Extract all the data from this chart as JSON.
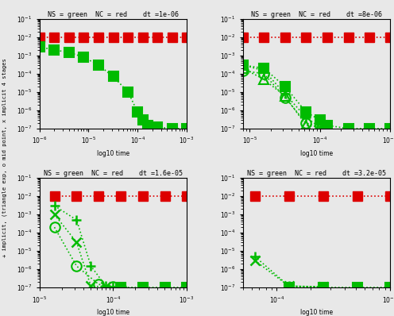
{
  "subplots": [
    {
      "title": "NS = green  NC = red    dt =1e-06",
      "xlim": [
        1e-06,
        0.001
      ],
      "ylim": [
        1e-07,
        0.1
      ],
      "red_x": [
        1e-06,
        2e-06,
        4e-06,
        8e-06,
        1.6e-05,
        3.2e-05,
        6.4e-05,
        0.000128,
        0.000256,
        0.000512,
        0.001
      ],
      "red_y": [
        0.01,
        0.01,
        0.01,
        0.01,
        0.01,
        0.01,
        0.01,
        0.01,
        0.01,
        0.01,
        0.01
      ],
      "series": [
        {
          "x": [
            1e-06,
            2e-06,
            4e-06,
            8e-06,
            1.6e-05,
            3.2e-05,
            6.4e-05,
            0.0001,
            0.000128,
            0.00016,
            0.000256,
            0.000512,
            0.001
          ],
          "y": [
            0.003,
            0.002,
            0.0015,
            0.0008,
            0.0003,
            7e-05,
            1e-05,
            8e-07,
            3e-07,
            1.5e-07,
            1.2e-07,
            1e-07,
            1e-07
          ],
          "marker": "s",
          "filled": true
        }
      ]
    },
    {
      "title": "NS = green  NC = red    dt =8e-06",
      "xlim": [
        8e-06,
        0.001
      ],
      "ylim": [
        1e-07,
        0.1
      ],
      "red_x": [
        8e-06,
        1.6e-05,
        3.2e-05,
        6.4e-05,
        0.000128,
        0.000256,
        0.000512,
        0.001
      ],
      "red_y": [
        0.01,
        0.01,
        0.01,
        0.01,
        0.01,
        0.01,
        0.01,
        0.01
      ],
      "series": [
        {
          "x": [
            8e-06,
            1.6e-05,
            3.2e-05,
            6.4e-05,
            0.0001,
            0.000128,
            0.000256,
            0.000512,
            0.001
          ],
          "y": [
            0.0003,
            0.0002,
            2e-05,
            8e-07,
            3e-07,
            1.5e-07,
            1e-07,
            1e-07,
            1e-07
          ],
          "marker": "s",
          "filled": true
        },
        {
          "x": [
            8e-06,
            1.6e-05,
            3.2e-05,
            6.4e-05,
            0.0001
          ],
          "y": [
            0.0002,
            5e-05,
            6e-06,
            1.5e-07,
            1.2e-07
          ],
          "marker": "^",
          "filled": false
        },
        {
          "x": [
            8e-06,
            1.6e-05,
            3.2e-05,
            6.4e-05,
            0.0001
          ],
          "y": [
            0.00015,
            0.0001,
            5e-06,
            2e-07,
            1.3e-07
          ],
          "marker": "o",
          "filled": false
        },
        {
          "x": [
            8e-06,
            1.6e-05,
            3.2e-05,
            6.4e-05,
            0.0001
          ],
          "y": [
            0.0003,
            0.00015,
            8e-06,
            4e-07,
            1.2e-07
          ],
          "marker": "+",
          "filled": false
        }
      ]
    },
    {
      "title": "NS = green  NC = red    dt =1.6e-05",
      "xlim": [
        1e-05,
        0.001
      ],
      "ylim": [
        1e-07,
        0.1
      ],
      "red_x": [
        1.6e-05,
        3.2e-05,
        6.4e-05,
        0.000128,
        0.000256,
        0.000512,
        0.001
      ],
      "red_y": [
        0.01,
        0.01,
        0.01,
        0.01,
        0.01,
        0.01,
        0.01
      ],
      "series": [
        {
          "x": [
            0.000128,
            0.000256,
            0.000512,
            0.001
          ],
          "y": [
            1e-07,
            1e-07,
            1e-07,
            1e-07
          ],
          "marker": "s",
          "filled": true
        },
        {
          "x": [
            1.6e-05,
            3.2e-05,
            6.4e-05,
            0.0001,
            0.000128
          ],
          "y": [
            0.0002,
            1.5e-06,
            1.5e-07,
            1.1e-07,
            1e-07
          ],
          "marker": "o",
          "filled": false
        },
        {
          "x": [
            1.6e-05,
            3.2e-05,
            5e-05,
            8e-05,
            0.0001
          ],
          "y": [
            0.003,
            0.0005,
            1.5e-06,
            1.2e-07,
            1.1e-07
          ],
          "marker": "+",
          "filled": false
        },
        {
          "x": [
            1.6e-05,
            3.2e-05,
            5e-05,
            8e-05
          ],
          "y": [
            0.001,
            3e-05,
            1.2e-07,
            1.1e-07
          ],
          "marker": "x",
          "filled": false
        }
      ]
    },
    {
      "title": "NS = green  NC = red    dt =3.2e-05",
      "xlim": [
        5e-05,
        0.001
      ],
      "ylim": [
        1e-07,
        0.1
      ],
      "red_x": [
        6.4e-05,
        0.000128,
        0.000256,
        0.000512,
        0.001
      ],
      "red_y": [
        0.01,
        0.01,
        0.01,
        0.01,
        0.01
      ],
      "series": [
        {
          "x": [
            0.000128,
            0.000256,
            0.000512,
            0.001
          ],
          "y": [
            1e-07,
            1e-07,
            1e-07,
            1e-07
          ],
          "marker": "s",
          "filled": true
        },
        {
          "x": [
            6.4e-05,
            0.000128,
            0.000256
          ],
          "y": [
            5e-06,
            1.2e-07,
            1.1e-07
          ],
          "marker": "+",
          "filled": false
        },
        {
          "x": [
            6.4e-05,
            0.000128,
            0.000256
          ],
          "y": [
            3e-06,
            1.2e-07,
            1.1e-07
          ],
          "marker": "x",
          "filled": false
        }
      ]
    }
  ],
  "ylabel": "+ implicit, (triangle exp, o mid point, x implicit 4 stages",
  "green_color": "#00bb00",
  "red_color": "#dd0000",
  "marker_size_sq": 8,
  "marker_size_other": 9,
  "linewidth": 1.2,
  "bg_color": "#e8e8e8"
}
